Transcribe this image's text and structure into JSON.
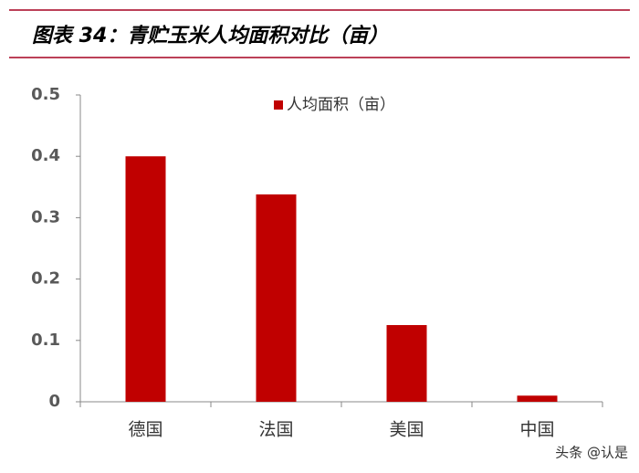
{
  "chart_data": {
    "type": "bar",
    "title": "图表 34：青贮玉米人均面积对比（亩）",
    "categories": [
      "德国",
      "法国",
      "美国",
      "中国"
    ],
    "series": [
      {
        "name": "人均面积（亩）",
        "color": "#c00000",
        "values": [
          0.4,
          0.338,
          0.125,
          0.01
        ]
      }
    ],
    "ylim": [
      0,
      0.5
    ],
    "yticks": [
      0,
      0.1,
      0.2,
      0.3,
      0.4,
      0.5
    ],
    "grid": false,
    "watermark": "头条 @认是"
  }
}
